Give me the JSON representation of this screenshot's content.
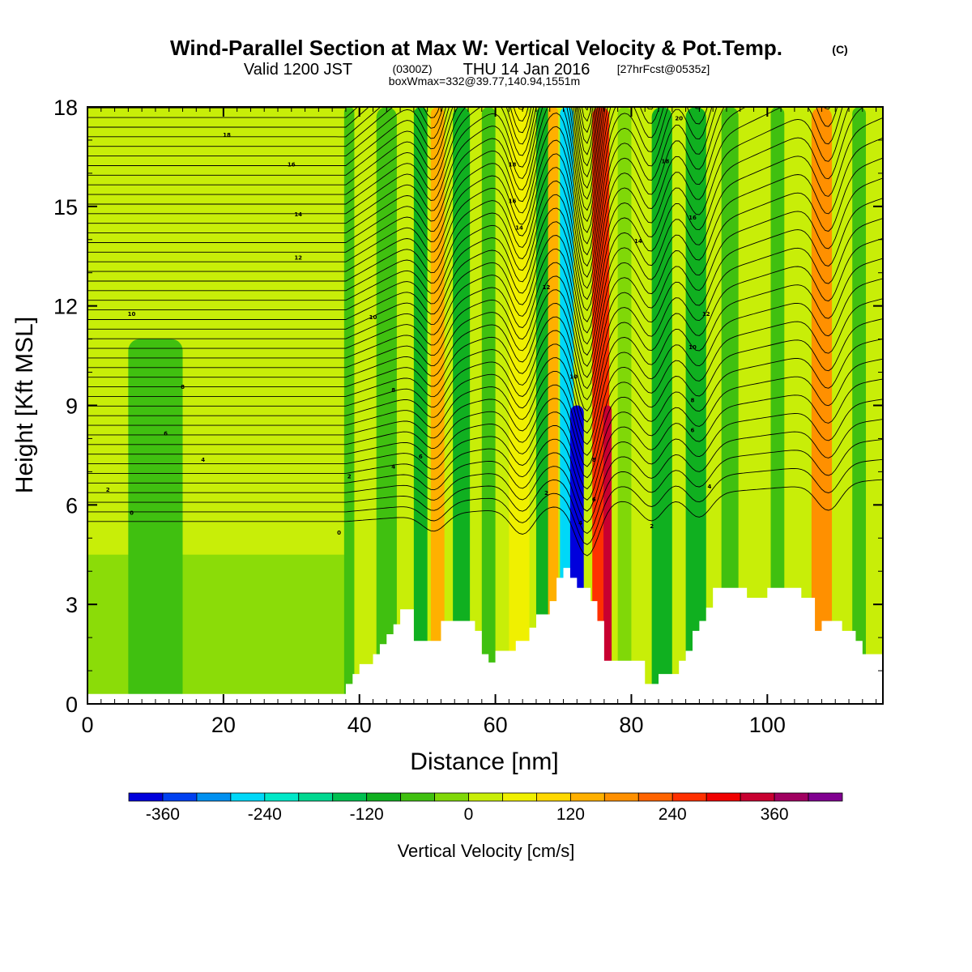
{
  "title": {
    "main": "Wind-Parallel Section at Max W: Vertical Velocity & Pot.Temp.",
    "main_suffix": "(C)",
    "line2_a": "Valid 1200 JST",
    "line2_b": "(0300Z)",
    "line2_c": "THU 14 Jan 2016",
    "line2_d": "[27hrFcst@0535z]",
    "line3": "boxWmax=332@39.77,140.94,1551m"
  },
  "chart_data": {
    "type": "heatmap",
    "xlabel": "Distance [nm]",
    "ylabel": "Height [Kft MSL]",
    "xlim": [
      0,
      117
    ],
    "ylim": [
      0,
      18
    ],
    "x_ticks": [
      0,
      20,
      40,
      60,
      80,
      100
    ],
    "y_ticks": [
      0,
      3,
      6,
      9,
      12,
      15,
      18
    ],
    "colorbar": {
      "title": "Vertical Velocity [cm/s]",
      "tick_labels": [
        "-360",
        "-240",
        "-120",
        "0",
        "120",
        "240",
        "360"
      ],
      "tick_values": [
        -360,
        -240,
        -120,
        0,
        120,
        240,
        360
      ],
      "bins": [
        {
          "from": -400,
          "to": -360,
          "color": "#0000dc"
        },
        {
          "from": -360,
          "to": -320,
          "color": "#0040f0"
        },
        {
          "from": -320,
          "to": -280,
          "color": "#0090f0"
        },
        {
          "from": -280,
          "to": -240,
          "color": "#00d8f8"
        },
        {
          "from": -240,
          "to": -200,
          "color": "#00e8c8"
        },
        {
          "from": -200,
          "to": -160,
          "color": "#00d890"
        },
        {
          "from": -160,
          "to": -120,
          "color": "#00c050"
        },
        {
          "from": -120,
          "to": -80,
          "color": "#10b020"
        },
        {
          "from": -80,
          "to": -40,
          "color": "#40c010"
        },
        {
          "from": -40,
          "to": 0,
          "color": "#80d808"
        },
        {
          "from": 0,
          "to": 40,
          "color": "#c8ee08"
        },
        {
          "from": 40,
          "to": 80,
          "color": "#f0f000"
        },
        {
          "from": 80,
          "to": 120,
          "color": "#ffd800"
        },
        {
          "from": 120,
          "to": 160,
          "color": "#ffb000"
        },
        {
          "from": 160,
          "to": 200,
          "color": "#ff9000"
        },
        {
          "from": 200,
          "to": 240,
          "color": "#ff6400"
        },
        {
          "from": 240,
          "to": 280,
          "color": "#ff3000"
        },
        {
          "from": 280,
          "to": 320,
          "color": "#f00000"
        },
        {
          "from": 320,
          "to": 360,
          "color": "#c80030"
        },
        {
          "from": 360,
          "to": 400,
          "color": "#a00060"
        },
        {
          "from": 400,
          "to": 440,
          "color": "#800090"
        }
      ]
    },
    "vertical_velocity_bands": [
      {
        "x_center": 10,
        "width": 8,
        "value": -60,
        "y_max": 11
      },
      {
        "x_center": 38.5,
        "width": 1.5,
        "value": -60,
        "y_max": 18
      },
      {
        "x_center": 44,
        "width": 3,
        "value": -60,
        "y_max": 18
      },
      {
        "x_center": 49,
        "width": 2,
        "value": -100,
        "y_max": 18
      },
      {
        "x_center": 51.5,
        "width": 2,
        "value": 120,
        "y_max": 18
      },
      {
        "x_center": 55,
        "width": 2.5,
        "value": -100,
        "y_max": 18
      },
      {
        "x_center": 59,
        "width": 2,
        "value": -60,
        "y_max": 18
      },
      {
        "x_center": 63.5,
        "width": 3,
        "value": 60,
        "y_max": 18
      },
      {
        "x_center": 67,
        "width": 2,
        "value": -90,
        "y_max": 18
      },
      {
        "x_center": 68.5,
        "width": 1.5,
        "value": 140,
        "y_max": 18
      },
      {
        "x_center": 70.5,
        "width": 2,
        "value": -260,
        "y_max": 18
      },
      {
        "x_center": 72,
        "width": 2,
        "value": -370,
        "y_max": 9
      },
      {
        "x_center": 75.5,
        "width": 2.5,
        "value": 250,
        "y_max": 18
      },
      {
        "x_center": 76.5,
        "width": 1.2,
        "value": 350,
        "y_max": 9
      },
      {
        "x_center": 79,
        "width": 2,
        "value": -40,
        "y_max": 18
      },
      {
        "x_center": 84.5,
        "width": 3,
        "value": -90,
        "y_max": 18
      },
      {
        "x_center": 89.5,
        "width": 3,
        "value": -110,
        "y_max": 18
      },
      {
        "x_center": 94.5,
        "width": 2.5,
        "value": -80,
        "y_max": 18
      },
      {
        "x_center": 101.5,
        "width": 2,
        "value": -80,
        "y_max": 18
      },
      {
        "x_center": 108,
        "width": 3,
        "value": 170,
        "y_max": 18
      },
      {
        "x_center": 113.5,
        "width": 2,
        "value": -60,
        "y_max": 18
      }
    ],
    "terrain_kft": [
      [
        0,
        0.3
      ],
      [
        38,
        0.3
      ],
      [
        38,
        0.6
      ],
      [
        39,
        0.6
      ],
      [
        39,
        0.9
      ],
      [
        40,
        0.9
      ],
      [
        40,
        1.2
      ],
      [
        42,
        1.2
      ],
      [
        42,
        1.5
      ],
      [
        43,
        1.5
      ],
      [
        43,
        1.8
      ],
      [
        44,
        1.8
      ],
      [
        44,
        2.1
      ],
      [
        45,
        2.1
      ],
      [
        45,
        2.4
      ],
      [
        46,
        2.4
      ],
      [
        46,
        2.85
      ],
      [
        48,
        2.85
      ],
      [
        48,
        1.9
      ],
      [
        52,
        1.9
      ],
      [
        52,
        2.5
      ],
      [
        57,
        2.5
      ],
      [
        57,
        2.2
      ],
      [
        58,
        2.2
      ],
      [
        58,
        1.5
      ],
      [
        59,
        1.5
      ],
      [
        59,
        1.25
      ],
      [
        60,
        1.25
      ],
      [
        60,
        1.6
      ],
      [
        63,
        1.6
      ],
      [
        63,
        1.9
      ],
      [
        65,
        1.9
      ],
      [
        65,
        2.3
      ],
      [
        66,
        2.3
      ],
      [
        66,
        2.7
      ],
      [
        68,
        2.7
      ],
      [
        68,
        3.1
      ],
      [
        69,
        3.1
      ],
      [
        69,
        3.8
      ],
      [
        70,
        3.8
      ],
      [
        70,
        4.1
      ],
      [
        71,
        4.1
      ],
      [
        71,
        3.8
      ],
      [
        72,
        3.8
      ],
      [
        72,
        3.5
      ],
      [
        74,
        3.5
      ],
      [
        74,
        3.1
      ],
      [
        75,
        3.1
      ],
      [
        75,
        2.5
      ],
      [
        76,
        2.5
      ],
      [
        76,
        1.3
      ],
      [
        82,
        1.3
      ],
      [
        82,
        0.6
      ],
      [
        84,
        0.6
      ],
      [
        84,
        0.9
      ],
      [
        87,
        0.9
      ],
      [
        87,
        1.3
      ],
      [
        88,
        1.3
      ],
      [
        88,
        1.6
      ],
      [
        89,
        1.6
      ],
      [
        89,
        2.2
      ],
      [
        90,
        2.2
      ],
      [
        90,
        2.5
      ],
      [
        91,
        2.5
      ],
      [
        91,
        2.9
      ],
      [
        92,
        2.9
      ],
      [
        92,
        3.5
      ],
      [
        97,
        3.5
      ],
      [
        97,
        3.2
      ],
      [
        100,
        3.2
      ],
      [
        100,
        3.5
      ],
      [
        105,
        3.5
      ],
      [
        105,
        3.2
      ],
      [
        107,
        3.2
      ],
      [
        107,
        2.2
      ],
      [
        108,
        2.2
      ],
      [
        108,
        2.5
      ],
      [
        111,
        2.5
      ],
      [
        111,
        2.2
      ],
      [
        113,
        2.2
      ],
      [
        113,
        1.9
      ],
      [
        114,
        1.9
      ],
      [
        114,
        1.5
      ],
      [
        117,
        1.5
      ]
    ],
    "theta_contour_labels": [
      {
        "x": 20.5,
        "y": 17.1,
        "text": "18"
      },
      {
        "x": 30,
        "y": 16.2,
        "text": "16"
      },
      {
        "x": 31,
        "y": 14.7,
        "text": "14"
      },
      {
        "x": 31,
        "y": 13.4,
        "text": "12"
      },
      {
        "x": 6.5,
        "y": 11.7,
        "text": "10"
      },
      {
        "x": 14,
        "y": 9.5,
        "text": "8"
      },
      {
        "x": 11.5,
        "y": 8.1,
        "text": "6"
      },
      {
        "x": 17,
        "y": 7.3,
        "text": "4"
      },
      {
        "x": 3,
        "y": 6.4,
        "text": "2"
      },
      {
        "x": 6.5,
        "y": 5.7,
        "text": "0"
      },
      {
        "x": 62.5,
        "y": 16.2,
        "text": "18"
      },
      {
        "x": 62.5,
        "y": 15.1,
        "text": "16"
      },
      {
        "x": 63.5,
        "y": 14.3,
        "text": "14"
      },
      {
        "x": 42,
        "y": 11.6,
        "text": "10"
      },
      {
        "x": 45,
        "y": 9.4,
        "text": "8"
      },
      {
        "x": 49,
        "y": 7.4,
        "text": "6"
      },
      {
        "x": 45,
        "y": 7.1,
        "text": "4"
      },
      {
        "x": 38.5,
        "y": 6.8,
        "text": "2"
      },
      {
        "x": 37,
        "y": 5.1,
        "text": "0"
      },
      {
        "x": 67.5,
        "y": 12.5,
        "text": "12"
      },
      {
        "x": 71.5,
        "y": 9.8,
        "text": "10"
      },
      {
        "x": 67.5,
        "y": 6.3,
        "text": "2"
      },
      {
        "x": 72.5,
        "y": 5.4,
        "text": "4"
      },
      {
        "x": 74.5,
        "y": 7.3,
        "text": "8"
      },
      {
        "x": 74.5,
        "y": 6.1,
        "text": "6"
      },
      {
        "x": 87,
        "y": 17.6,
        "text": "20"
      },
      {
        "x": 85,
        "y": 16.3,
        "text": "18"
      },
      {
        "x": 89,
        "y": 14.6,
        "text": "16"
      },
      {
        "x": 81,
        "y": 13.9,
        "text": "14"
      },
      {
        "x": 91,
        "y": 11.7,
        "text": "12"
      },
      {
        "x": 89,
        "y": 10.7,
        "text": "10"
      },
      {
        "x": 89,
        "y": 9.1,
        "text": "8"
      },
      {
        "x": 89,
        "y": 8.2,
        "text": "6"
      },
      {
        "x": 91.5,
        "y": 6.5,
        "text": "4"
      },
      {
        "x": 83,
        "y": 5.3,
        "text": "2"
      }
    ]
  }
}
